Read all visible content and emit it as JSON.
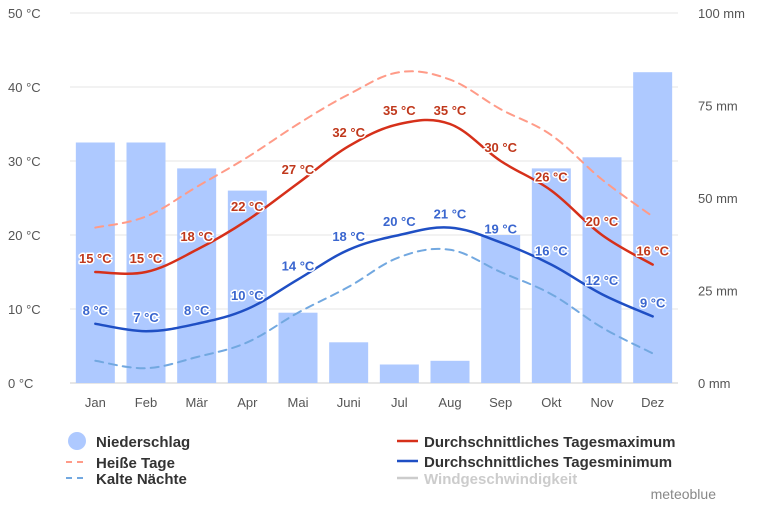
{
  "chart_data": {
    "type": "bar+line",
    "categories": [
      "Jan",
      "Feb",
      "Mär",
      "Apr",
      "Mai",
      "Juni",
      "Jul",
      "Aug",
      "Sep",
      "Okt",
      "Nov",
      "Dez"
    ],
    "y_left": {
      "min": 0,
      "max": 50,
      "ticks": [
        0,
        10,
        20,
        30,
        40,
        50
      ],
      "tick_labels": [
        "0 °C",
        "10 °C",
        "20 °C",
        "30 °C",
        "40 °C",
        "50 °C"
      ]
    },
    "y_right": {
      "min": 0,
      "max": 100,
      "ticks": [
        0,
        25,
        50,
        75,
        100
      ],
      "tick_labels": [
        "0 mm",
        "25 mm",
        "50 mm",
        "75 mm",
        "100 mm"
      ]
    },
    "precipitation": {
      "name": "Niederschlag",
      "color": "#aec9ff",
      "values": [
        65,
        65,
        58,
        52,
        19,
        11,
        5,
        6,
        40,
        58,
        61,
        84
      ]
    },
    "hot_days": {
      "name": "Heiße Tage",
      "color": "#ff9b88",
      "values": [
        21,
        22.5,
        26.5,
        30.5,
        35,
        39,
        42,
        41,
        37,
        33.5,
        27.5,
        22.5
      ]
    },
    "cold_nights": {
      "name": "Kalte Nächte",
      "color": "#72a8e0",
      "values": [
        3,
        2,
        3.5,
        5.5,
        9.5,
        13,
        17,
        18,
        15,
        12,
        7.5,
        4
      ]
    },
    "max_temp": {
      "name": "Durchschnittliches Tagesmaximum",
      "color": "#d6301a",
      "label_color": "#c0381c",
      "values": [
        15,
        15,
        18,
        22,
        27,
        32,
        35,
        35,
        30,
        26,
        20,
        16
      ],
      "labels": [
        "15 °C",
        "15 °C",
        "18 °C",
        "22 °C",
        "27 °C",
        "32 °C",
        "35 °C",
        "35 °C",
        "30 °C",
        "26 °C",
        "20 °C",
        "16 °C"
      ]
    },
    "min_temp": {
      "name": "Durchschnittliches Tagesminimum",
      "color": "#1f4fc4",
      "label_color": "#3a66cf",
      "values": [
        8,
        7,
        8,
        10,
        14,
        18,
        20,
        21,
        19,
        16,
        12,
        9
      ],
      "labels": [
        "8 °C",
        "7 °C",
        "8 °C",
        "10 °C",
        "14 °C",
        "18 °C",
        "20 °C",
        "21 °C",
        "19 °C",
        "16 °C",
        "12 °C",
        "9 °C"
      ]
    },
    "wind": {
      "name": "Windgeschwindigkeit",
      "color": "#cccccc"
    }
  },
  "legend": {
    "precipitation": "Niederschlag",
    "hot_days": "Heiße Tage",
    "cold_nights": "Kalte Nächte",
    "max_temp": "Durchschnittliches Tagesmaximum",
    "min_temp": "Durchschnittliches Tagesminimum",
    "wind": "Windgeschwindigkeit"
  },
  "watermark": "meteoblue"
}
